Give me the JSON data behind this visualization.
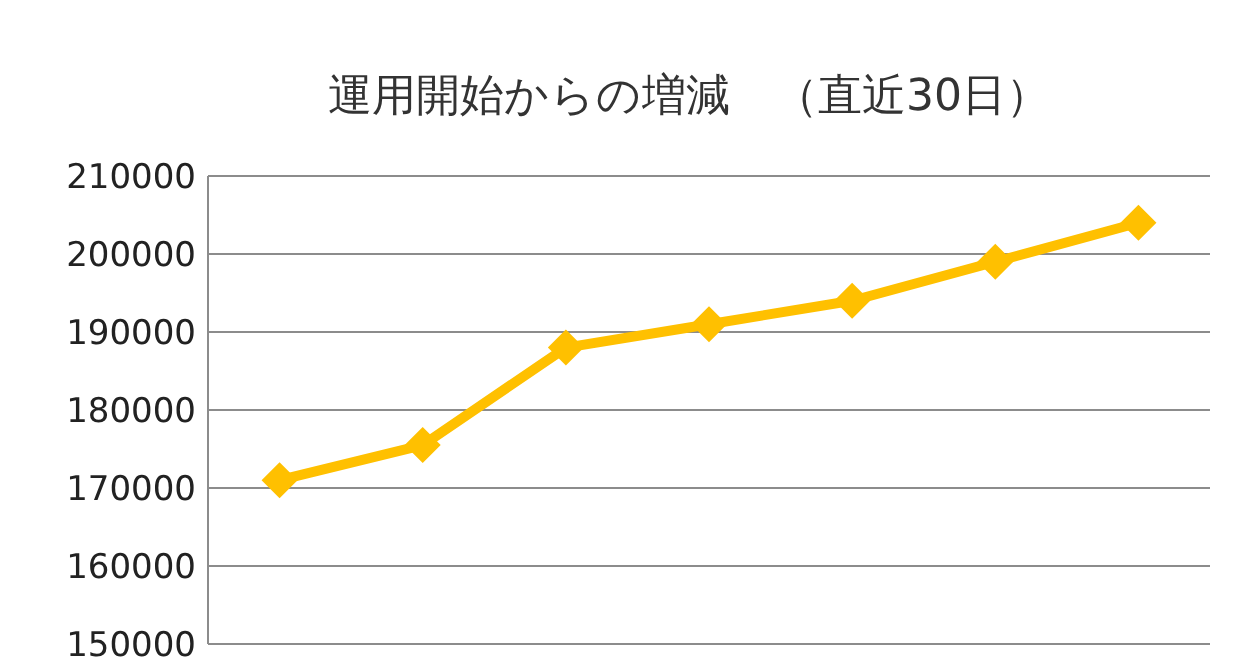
{
  "chart_data": {
    "type": "line",
    "title": "運用開始からの増減　（直近30日）",
    "categories": [
      null,
      null,
      null,
      null,
      null,
      null,
      null
    ],
    "series": [
      {
        "color": "#ffc000",
        "values": [
          171000,
          175500,
          188000,
          191000,
          194000,
          199000,
          204000
        ]
      }
    ],
    "ylim": [
      150000,
      210000
    ],
    "yticks": [
      150000,
      160000,
      170000,
      180000,
      190000,
      200000,
      210000
    ],
    "grid": "y",
    "marker": "diamond",
    "line_style": "solid"
  }
}
